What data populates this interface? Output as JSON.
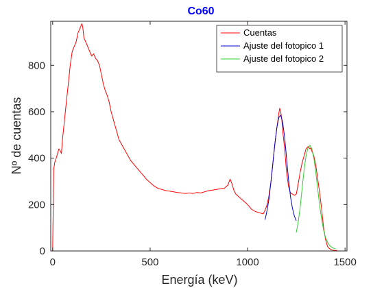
{
  "colors": {
    "title": "#0000ff",
    "counts": "#ff0000",
    "fit1": "#0000cc",
    "fit2": "#33cc33",
    "axis": "#262626"
  },
  "chart_data": {
    "type": "line",
    "title": "Co60",
    "xlabel": "Energía (keV)",
    "ylabel": "Nº de cuentas",
    "xlim": [
      -10,
      1510
    ],
    "ylim": [
      0,
      990
    ],
    "xticks": [
      0,
      500,
      1000,
      1500
    ],
    "yticks": [
      0,
      200,
      400,
      600,
      800
    ],
    "grid": false,
    "legend_position": "top-right",
    "series": [
      {
        "name": "Cuentas",
        "x": [
          0,
          5,
          10,
          18,
          25,
          32,
          40,
          45,
          50,
          60,
          70,
          80,
          90,
          100,
          110,
          120,
          130,
          140,
          150,
          155,
          160,
          170,
          180,
          190,
          200,
          210,
          220,
          230,
          240,
          250,
          260,
          270,
          280,
          290,
          300,
          320,
          340,
          360,
          380,
          400,
          420,
          440,
          460,
          480,
          500,
          520,
          540,
          560,
          580,
          600,
          620,
          640,
          660,
          680,
          700,
          720,
          740,
          760,
          780,
          800,
          820,
          840,
          860,
          880,
          900,
          910,
          920,
          930,
          940,
          960,
          980,
          1000,
          1020,
          1040,
          1060,
          1080,
          1090,
          1100,
          1110,
          1120,
          1130,
          1140,
          1150,
          1160,
          1165,
          1170,
          1175,
          1180,
          1190,
          1200,
          1210,
          1220,
          1230,
          1240,
          1250,
          1260,
          1270,
          1280,
          1290,
          1300,
          1310,
          1320,
          1325,
          1330,
          1340,
          1350,
          1360,
          1370,
          1380,
          1390,
          1400,
          1410,
          1420,
          1430,
          1440,
          1450,
          1460
        ],
        "values": [
          0,
          350,
          380,
          400,
          420,
          440,
          430,
          420,
          480,
          560,
          640,
          720,
          800,
          860,
          880,
          900,
          940,
          960,
          980,
          960,
          920,
          900,
          880,
          860,
          840,
          850,
          830,
          820,
          800,
          760,
          720,
          690,
          670,
          640,
          600,
          540,
          480,
          450,
          420,
          390,
          370,
          350,
          330,
          310,
          295,
          280,
          270,
          265,
          260,
          258,
          255,
          252,
          250,
          248,
          250,
          248,
          252,
          250,
          255,
          260,
          262,
          265,
          268,
          270,
          285,
          310,
          290,
          260,
          245,
          230,
          215,
          200,
          180,
          170,
          165,
          160,
          175,
          200,
          240,
          300,
          380,
          460,
          530,
          590,
          615,
          600,
          570,
          520,
          440,
          340,
          280,
          250,
          245,
          240,
          245,
          290,
          340,
          380,
          410,
          440,
          450,
          440,
          445,
          430,
          410,
          370,
          310,
          250,
          180,
          100,
          50,
          20,
          10,
          5,
          3,
          2,
          2
        ]
      },
      {
        "name": "Ajuste del fotopico 1",
        "x": [
          1090,
          1100,
          1110,
          1120,
          1130,
          1140,
          1150,
          1160,
          1170,
          1180,
          1190,
          1200,
          1210,
          1220,
          1230,
          1240,
          1250
        ],
        "values": [
          135,
          175,
          225,
          300,
          380,
          460,
          530,
          575,
          585,
          555,
          490,
          400,
          310,
          235,
          185,
          150,
          130
        ]
      },
      {
        "name": "Ajuste del fotopico 2",
        "x": [
          1250,
          1260,
          1270,
          1280,
          1290,
          1300,
          1310,
          1320,
          1330,
          1340,
          1350,
          1360,
          1370,
          1380,
          1390,
          1400,
          1410,
          1420,
          1430,
          1440,
          1450
        ],
        "values": [
          80,
          125,
          190,
          270,
          350,
          410,
          445,
          455,
          440,
          400,
          340,
          265,
          195,
          135,
          90,
          58,
          38,
          25,
          17,
          12,
          10
        ]
      }
    ]
  }
}
